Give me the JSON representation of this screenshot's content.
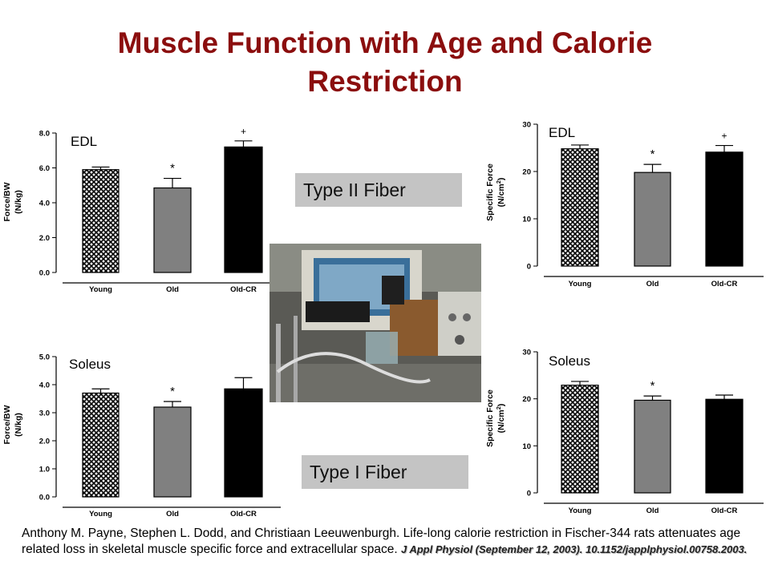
{
  "slide": {
    "title_line1": "Muscle Function with Age and Calorie",
    "title_line2": "Restriction"
  },
  "labels": {
    "type2": "Type II Fiber",
    "type1": "Type I Fiber"
  },
  "citation": {
    "text": "Anthony M. Payne, Stephen L. Dodd, and Christiaan Leeuwenburgh.  Life-long calorie restriction in Fischer-344 rats attenuates age related loss in skeletal muscle specific force and extracellular space. ",
    "journal": "J Appl Physiol (September 12, 2003). 10.1152/japplphysiol.00758.2003."
  },
  "colors": {
    "title": "#8b0e0e",
    "young_fill": "crosshatch",
    "old_fill": "#808080",
    "oldcr_fill": "#000000",
    "label_box": "#c4c4c4"
  },
  "chart_data": [
    {
      "id": "edl_force_bw",
      "type": "bar",
      "title": "EDL",
      "ylabel": "Force/BW",
      "ylabel_unit": "(N/kg)",
      "categories": [
        "Young",
        "Old",
        "Old-CR"
      ],
      "values": [
        5.9,
        4.85,
        7.2
      ],
      "errors": [
        0.15,
        0.55,
        0.35
      ],
      "markers": [
        "",
        "*",
        "+"
      ],
      "ylim": [
        0,
        8
      ],
      "yticks": [
        0,
        2,
        4,
        6,
        8
      ],
      "yticklabels": [
        "0.0",
        "2.0",
        "4.0",
        "6.0",
        "8.0"
      ]
    },
    {
      "id": "soleus_force_bw",
      "type": "bar",
      "title": "Soleus",
      "ylabel": "Force/BW",
      "ylabel_unit": "(N/kg)",
      "categories": [
        "Young",
        "Old",
        "Old-CR"
      ],
      "values": [
        3.7,
        3.2,
        3.85
      ],
      "errors": [
        0.15,
        0.2,
        0.4
      ],
      "markers": [
        "",
        "*",
        ""
      ],
      "ylim": [
        0,
        5
      ],
      "yticks": [
        0,
        1,
        2,
        3,
        4,
        5
      ],
      "yticklabels": [
        "0.0",
        "1.0",
        "2.0",
        "3.0",
        "4.0",
        "5.0"
      ]
    },
    {
      "id": "edl_specific_force",
      "type": "bar",
      "title": "EDL",
      "ylabel": "Specific Force",
      "ylabel_unit": "(N/cm2)",
      "categories": [
        "Young",
        "Old",
        "Old-CR"
      ],
      "values": [
        24.8,
        19.8,
        24.1
      ],
      "errors": [
        0.8,
        1.7,
        1.4
      ],
      "markers": [
        "",
        "*",
        "+"
      ],
      "ylim": [
        0,
        30
      ],
      "yticks": [
        0,
        10,
        20,
        30
      ],
      "yticklabels": [
        "0",
        "10",
        "20",
        "30"
      ]
    },
    {
      "id": "soleus_specific_force",
      "type": "bar",
      "title": "Soleus",
      "ylabel": "Specific Force",
      "ylabel_unit": "(N/cm2)",
      "categories": [
        "Young",
        "Old",
        "Old-CR"
      ],
      "values": [
        22.9,
        19.7,
        19.9
      ],
      "errors": [
        0.8,
        0.9,
        0.9
      ],
      "markers": [
        "",
        "*",
        ""
      ],
      "ylim": [
        0,
        30
      ],
      "yticks": [
        0,
        10,
        20,
        30
      ],
      "yticklabels": [
        "0",
        "10",
        "20",
        "30"
      ]
    }
  ]
}
